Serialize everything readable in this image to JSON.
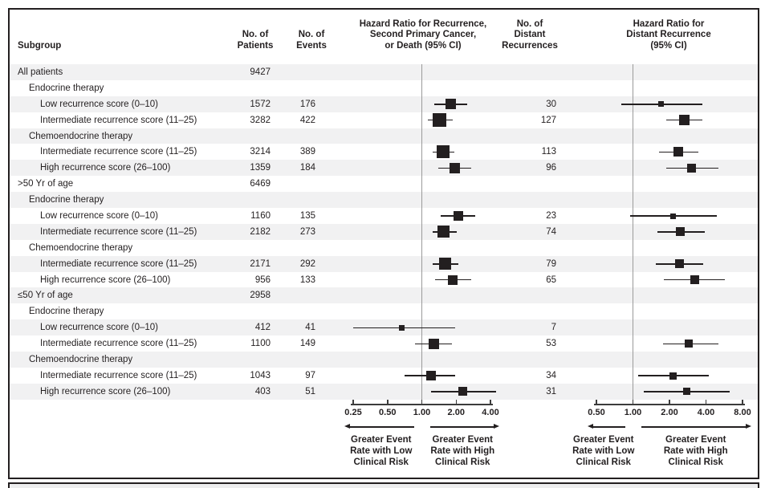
{
  "figure": {
    "header": {
      "subgroup": "Subgroup",
      "patients": "No. of\nPatients",
      "events": "No. of\nEvents",
      "hr_recurrence": "Hazard Ratio for Recurrence,\nSecond Primary Cancer,\nor Death (95% CI)",
      "distant": "No. of\nDistant\nRecurrences",
      "hr_distant": "Hazard Ratio for\nDistant Recurrence\n(95% CI)"
    },
    "labels": {
      "low": "Greater Event\nRate with Low\nClinical Risk",
      "high": "Greater Event\nRate with High\nClinical Risk"
    },
    "colors": {
      "marker": "#231f20",
      "refline": "#9a9a9a",
      "stripe": "#f1f1f2",
      "border": "#231f20"
    }
  },
  "rows": [
    {
      "label": "All patients",
      "indent": 0,
      "shaded": true,
      "patients": "9427",
      "events": "",
      "distant": ""
    },
    {
      "label": "Endocrine therapy",
      "indent": 1,
      "shaded": false,
      "patients": "",
      "events": "",
      "distant": ""
    },
    {
      "label": "Low recurrence score (0–10)",
      "indent": 2,
      "shaded": true,
      "patients": "1572",
      "events": "176",
      "distant": "30"
    },
    {
      "label": "Intermediate recurrence score (11–25)",
      "indent": 2,
      "shaded": false,
      "patients": "3282",
      "events": "422",
      "distant": "127"
    },
    {
      "label": "Chemoendocrine therapy",
      "indent": 1,
      "shaded": true,
      "patients": "",
      "events": "",
      "distant": ""
    },
    {
      "label": "Intermediate recurrence score (11–25)",
      "indent": 2,
      "shaded": false,
      "patients": "3214",
      "events": "389",
      "distant": "113"
    },
    {
      "label": "High recurrence score (26–100)",
      "indent": 2,
      "shaded": true,
      "patients": "1359",
      "events": "184",
      "distant": "96"
    },
    {
      "label": ">50 Yr of age",
      "indent": 0,
      "shaded": false,
      "patients": "6469",
      "events": "",
      "distant": ""
    },
    {
      "label": "Endocrine therapy",
      "indent": 1,
      "shaded": true,
      "patients": "",
      "events": "",
      "distant": ""
    },
    {
      "label": "Low recurrence score (0–10)",
      "indent": 2,
      "shaded": false,
      "patients": "1160",
      "events": "135",
      "distant": "23"
    },
    {
      "label": "Intermediate recurrence score (11–25)",
      "indent": 2,
      "shaded": true,
      "patients": "2182",
      "events": "273",
      "distant": "74"
    },
    {
      "label": "Chemoendocrine therapy",
      "indent": 1,
      "shaded": false,
      "patients": "",
      "events": "",
      "distant": ""
    },
    {
      "label": "Intermediate recurrence score (11–25)",
      "indent": 2,
      "shaded": true,
      "patients": "2171",
      "events": "292",
      "distant": "79"
    },
    {
      "label": "High recurrence score (26–100)",
      "indent": 2,
      "shaded": false,
      "patients": "956",
      "events": "133",
      "distant": "65"
    },
    {
      "label": "≤50 Yr of age",
      "indent": 0,
      "shaded": true,
      "patients": "2958",
      "events": "",
      "distant": ""
    },
    {
      "label": "Endocrine therapy",
      "indent": 1,
      "shaded": false,
      "patients": "",
      "events": "",
      "distant": ""
    },
    {
      "label": "Low recurrence score (0–10)",
      "indent": 2,
      "shaded": true,
      "patients": "412",
      "events": "41",
      "distant": "7"
    },
    {
      "label": "Intermediate recurrence score (11–25)",
      "indent": 2,
      "shaded": false,
      "patients": "1100",
      "events": "149",
      "distant": "53"
    },
    {
      "label": "Chemoendocrine therapy",
      "indent": 1,
      "shaded": true,
      "patients": "",
      "events": "",
      "distant": ""
    },
    {
      "label": "Intermediate recurrence score (11–25)",
      "indent": 2,
      "shaded": false,
      "patients": "1043",
      "events": "97",
      "distant": "34"
    },
    {
      "label": "High recurrence score (26–100)",
      "indent": 2,
      "shaded": true,
      "patients": "403",
      "events": "51",
      "distant": "31"
    }
  ],
  "chart_data": [
    {
      "type": "scatter",
      "subtype": "forest",
      "title": "Hazard Ratio for Recurrence, Second Primary Cancer, or Death (95% CI)",
      "xscale": "log",
      "xlim": [
        0.25,
        4.0
      ],
      "ticks": [
        "0.25",
        "0.50",
        "1.00",
        "2.00",
        "4.00"
      ],
      "refline": 1.0,
      "legend_left": "Greater Event Rate with Low Clinical Risk",
      "legend_right": "Greater Event Rate with High Clinical Risk",
      "points": [
        {
          "row": 2,
          "label": "Endocrine, low RS (0–10), all",
          "hr": 1.79,
          "lo": 1.28,
          "hi": 2.48,
          "size": 13
        },
        {
          "row": 3,
          "label": "Endocrine, intermediate RS (11–25), all",
          "hr": 1.44,
          "lo": 1.13,
          "hi": 1.87,
          "size": 17
        },
        {
          "row": 5,
          "label": "Chemoendocrine, intermediate RS, all",
          "hr": 1.53,
          "lo": 1.24,
          "hi": 1.94,
          "size": 16
        },
        {
          "row": 6,
          "label": "Chemoendocrine, high RS (26–100), all",
          "hr": 1.94,
          "lo": 1.4,
          "hi": 2.69,
          "size": 13
        },
        {
          "row": 9,
          "label": "Endocrine, low RS, >50 yr",
          "hr": 2.09,
          "lo": 1.46,
          "hi": 2.94,
          "size": 12
        },
        {
          "row": 10,
          "label": "Endocrine, intermediate RS, >50 yr",
          "hr": 1.56,
          "lo": 1.25,
          "hi": 2.02,
          "size": 15
        },
        {
          "row": 12,
          "label": "Chemoendocrine, intermediate RS, >50 yr",
          "hr": 1.59,
          "lo": 1.25,
          "hi": 2.08,
          "size": 15
        },
        {
          "row": 13,
          "label": "Chemoendocrine, high RS, >50 yr",
          "hr": 1.87,
          "lo": 1.3,
          "hi": 2.7,
          "size": 12
        },
        {
          "row": 16,
          "label": "Endocrine, low RS, ≤50 yr",
          "hr": 0.67,
          "lo": 0.25,
          "hi": 1.96,
          "size": 7
        },
        {
          "row": 17,
          "label": "Endocrine, intermediate RS, ≤50 yr",
          "hr": 1.27,
          "lo": 0.87,
          "hi": 1.84,
          "size": 13
        },
        {
          "row": 19,
          "label": "Chemoendocrine, intermediate RS, ≤50 yr",
          "hr": 1.2,
          "lo": 0.7,
          "hi": 1.95,
          "size": 12
        },
        {
          "row": 20,
          "label": "Chemoendocrine, high RS, ≤50 yr",
          "hr": 2.3,
          "lo": 1.21,
          "hi": 4.45,
          "size": 11
        }
      ]
    },
    {
      "type": "scatter",
      "subtype": "forest",
      "title": "Hazard Ratio for Distant Recurrence (95% CI)",
      "xscale": "log",
      "xlim": [
        0.5,
        8.0
      ],
      "ticks": [
        "0.50",
        "1.00",
        "2.00",
        "4.00",
        "8.00"
      ],
      "refline": 1.0,
      "legend_left": "Greater Event Rate with Low Clinical Risk",
      "legend_right": "Greater Event Rate with High Clinical Risk",
      "points": [
        {
          "row": 2,
          "label": "Endocrine, low RS (0–10), all",
          "hr": 1.7,
          "lo": 0.8,
          "hi": 3.75,
          "size": 7
        },
        {
          "row": 3,
          "label": "Endocrine, intermediate RS (11–25), all",
          "hr": 2.65,
          "lo": 1.87,
          "hi": 3.71,
          "size": 13
        },
        {
          "row": 5,
          "label": "Chemoendocrine, intermediate RS, all",
          "hr": 2.35,
          "lo": 1.63,
          "hi": 3.44,
          "size": 12
        },
        {
          "row": 6,
          "label": "Chemoendocrine, high RS (26–100), all",
          "hr": 3.04,
          "lo": 1.87,
          "hi": 5.03,
          "size": 11
        },
        {
          "row": 9,
          "label": "Endocrine, low RS, >50 yr",
          "hr": 2.14,
          "lo": 0.95,
          "hi": 4.88,
          "size": 7
        },
        {
          "row": 10,
          "label": "Endocrine, intermediate RS, >50 yr",
          "hr": 2.46,
          "lo": 1.6,
          "hi": 3.94,
          "size": 11
        },
        {
          "row": 12,
          "label": "Chemoendocrine, intermediate RS, >50 yr",
          "hr": 2.42,
          "lo": 1.54,
          "hi": 3.82,
          "size": 11
        },
        {
          "row": 13,
          "label": "Chemoendocrine, high RS, >50 yr",
          "hr": 3.23,
          "lo": 1.79,
          "hi": 5.68,
          "size": 11
        },
        {
          "row": 17,
          "label": "Endocrine, intermediate RS, ≤50 yr",
          "hr": 2.9,
          "lo": 1.76,
          "hi": 5.1,
          "size": 10
        },
        {
          "row": 19,
          "label": "Chemoendocrine, intermediate RS, ≤50 yr",
          "hr": 2.14,
          "lo": 1.1,
          "hi": 4.2,
          "size": 9
        },
        {
          "row": 20,
          "label": "Chemoendocrine, high RS, ≤50 yr",
          "hr": 2.77,
          "lo": 1.22,
          "hi": 6.3,
          "size": 9
        }
      ]
    }
  ]
}
